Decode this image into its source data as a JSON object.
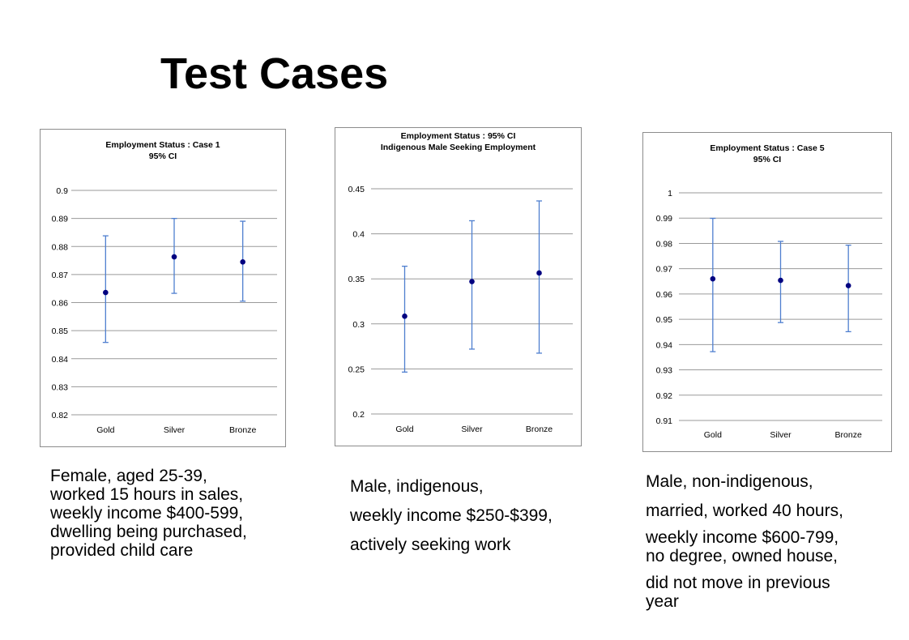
{
  "slide": {
    "title": "Test Cases"
  },
  "chart_data": [
    {
      "type": "scatter",
      "title": [
        "Employment Status : Case 1",
        "95% CI"
      ],
      "categories": [
        "Gold",
        "Silver",
        "Bronze"
      ],
      "values": [
        0.8636,
        0.8763,
        0.8745
      ],
      "lower": [
        0.8458,
        0.8633,
        0.8605
      ],
      "upper": [
        0.8838,
        0.89,
        0.889
      ],
      "ylim": [
        0.82,
        0.9
      ],
      "yticks": [
        "0.82",
        "0.83",
        "0.84",
        "0.85",
        "0.86",
        "0.87",
        "0.88",
        "0.89",
        "0.9"
      ],
      "grid": true,
      "xlabel": "",
      "ylabel": ""
    },
    {
      "type": "scatter",
      "title": [
        "Employment Status : 95% CI",
        "Indigenous Male Seeking Employment"
      ],
      "categories": [
        "Gold",
        "Silver",
        "Bronze"
      ],
      "values": [
        0.3085,
        0.347,
        0.3565
      ],
      "lower": [
        0.2465,
        0.272,
        0.2675
      ],
      "upper": [
        0.364,
        0.4145,
        0.4365
      ],
      "ylim": [
        0.2,
        0.45
      ],
      "yticks": [
        "0.2",
        "0.25",
        "0.3",
        "0.35",
        "0.4",
        "0.45"
      ],
      "grid": true,
      "xlabel": "",
      "ylabel": ""
    },
    {
      "type": "scatter",
      "title": [
        "Employment Status : Case 5",
        "95% CI"
      ],
      "categories": [
        "Gold",
        "Silver",
        "Bronze"
      ],
      "values": [
        0.966,
        0.9654,
        0.9633
      ],
      "lower": [
        0.9372,
        0.9487,
        0.9451
      ],
      "upper": [
        0.9899,
        0.9808,
        0.9793
      ],
      "ylim": [
        0.91,
        1
      ],
      "yticks": [
        "0.91",
        "0.92",
        "0.93",
        "0.94",
        "0.95",
        "0.96",
        "0.97",
        "0.98",
        "0.99",
        "1"
      ],
      "grid": true,
      "xlabel": "",
      "ylabel": ""
    }
  ],
  "captions": [
    [
      "Female, aged 25-39,",
      "worked 15 hours in sales,",
      "weekly income $400-599,",
      "dwelling being purchased,",
      "provided child care"
    ],
    [
      "Male, indigenous,",
      "weekly income $250-$399,",
      "actively seeking work"
    ],
    [
      "Male, non-indigenous,",
      "married, worked 40 hours,",
      "weekly income $600-799,",
      "no degree, owned house,",
      "did not move in previous",
      "year"
    ]
  ]
}
